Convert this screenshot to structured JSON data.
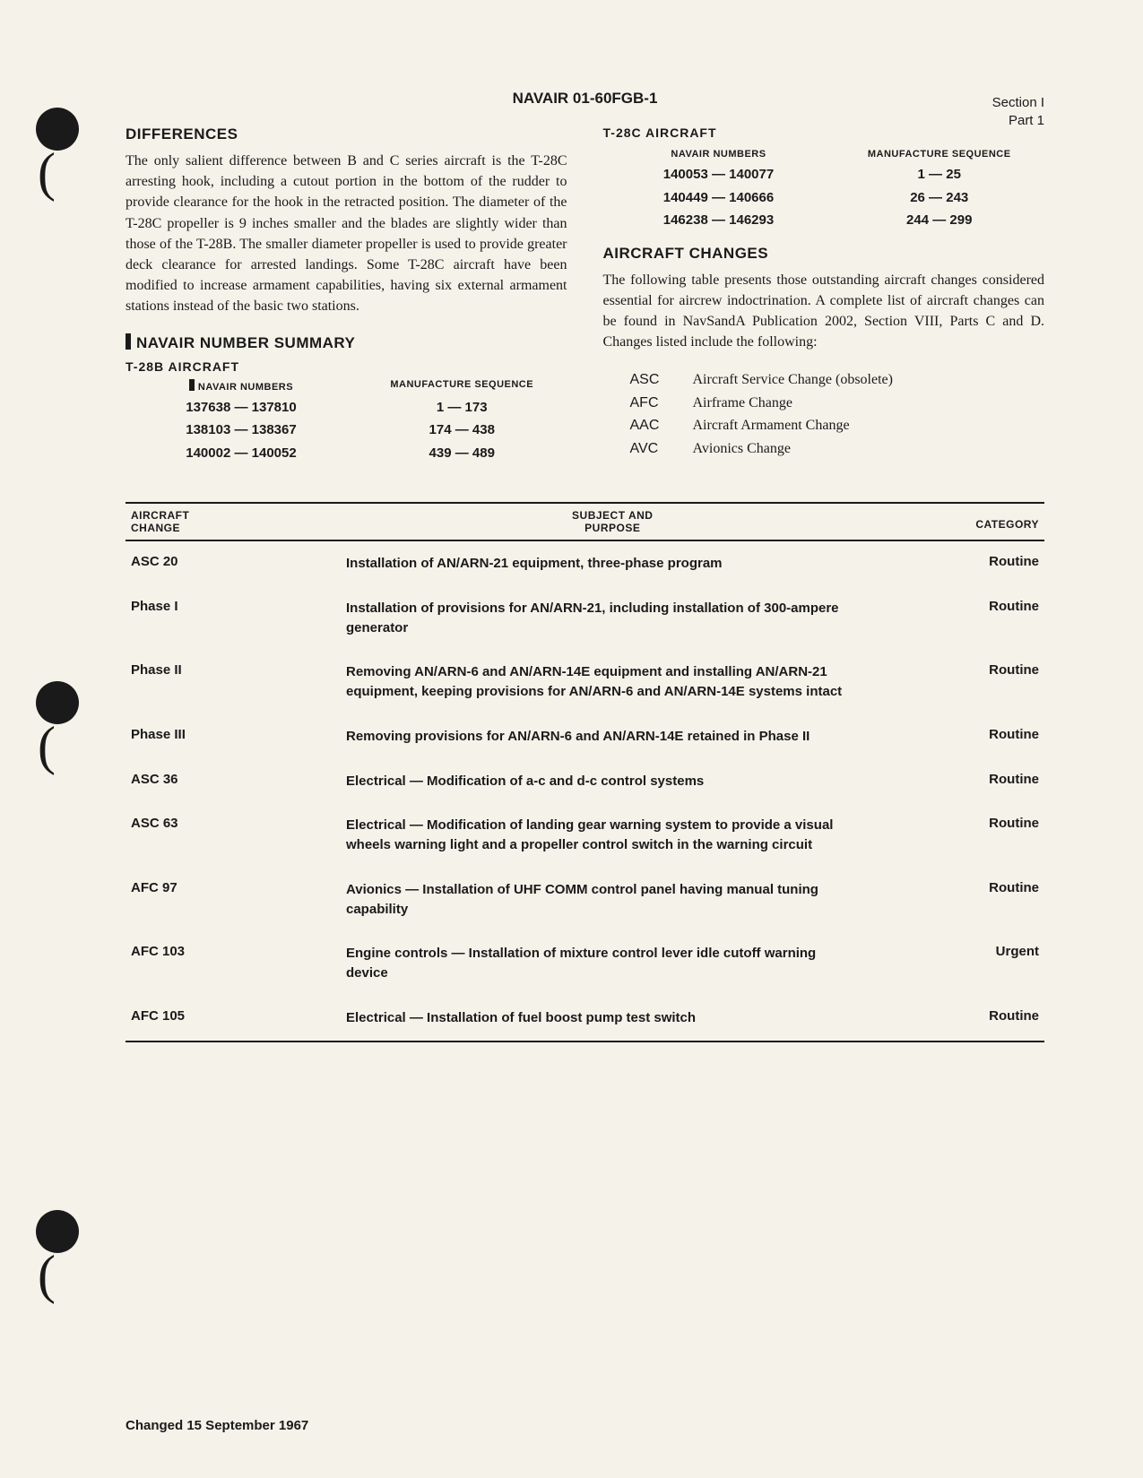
{
  "doc_number": "NAVAIR 01-60FGB-1",
  "section": {
    "line1": "Section I",
    "line2": "Part 1"
  },
  "left": {
    "h_diff": "DIFFERENCES",
    "diff_para": "The only salient difference between B and C series aircraft is the T-28C arresting hook, including a cutout portion in the bottom of the rudder to provide clearance for the hook in the retracted position. The diameter of the T-28C propeller is 9 inches smaller and the blades are slightly wider than those of the T-28B. The smaller diameter propeller is used to provide greater deck clearance for arrested landings. Some T-28C aircraft have been modified to increase armament capabilities, having six external armament stations instead of the basic two stations.",
    "h_nav": "NAVAIR NUMBER SUMMARY",
    "h_t28b": "T-28B AIRCRAFT",
    "hdr_nav": "NAVAIR NUMBERS",
    "hdr_seq": "MANUFACTURE SEQUENCE",
    "t28b_rows": [
      {
        "n": "137638 — 137810",
        "s": "1 — 173"
      },
      {
        "n": "138103 — 138367",
        "s": "174 — 438"
      },
      {
        "n": "140002 — 140052",
        "s": "439 — 489"
      }
    ]
  },
  "right": {
    "h_t28c": "T-28C AIRCRAFT",
    "t28c_rows": [
      {
        "n": "140053 — 140077",
        "s": "1 — 25"
      },
      {
        "n": "140449 — 140666",
        "s": "26 — 243"
      },
      {
        "n": "146238 — 146293",
        "s": "244 — 299"
      }
    ],
    "h_changes": "AIRCRAFT CHANGES",
    "changes_para": "The following table presents those outstanding aircraft changes considered essential for aircrew indoctrination. A complete list of aircraft changes can be found in NavSandA Publication 2002, Section VIII, Parts C and D. Changes listed include the following:",
    "codes": [
      {
        "c": "ASC",
        "d": "Aircraft Service Change (obsolete)"
      },
      {
        "c": "AFC",
        "d": "Airframe Change"
      },
      {
        "c": "AAC",
        "d": "Aircraft Armament Change"
      },
      {
        "c": "AVC",
        "d": "Avionics Change"
      }
    ]
  },
  "table": {
    "h1a": "AIRCRAFT",
    "h1b": "CHANGE",
    "h2a": "SUBJECT AND",
    "h2b": "PURPOSE",
    "h3": "CATEGORY",
    "rows": [
      {
        "c": "ASC 20",
        "p": "Installation of AN/ARN-21 equipment, three-phase program",
        "cat": "Routine"
      },
      {
        "c": "Phase I",
        "p": "Installation of provisions for AN/ARN-21, including installation of 300-ampere generator",
        "cat": "Routine"
      },
      {
        "c": "Phase II",
        "p": "Removing AN/ARN-6 and AN/ARN-14E equipment and installing AN/ARN-21 equipment, keeping provisions for AN/ARN-6 and AN/ARN-14E systems intact",
        "cat": "Routine"
      },
      {
        "c": "Phase III",
        "p": "Removing provisions for AN/ARN-6 and AN/ARN-14E retained in Phase II",
        "cat": "Routine"
      },
      {
        "c": "ASC 36",
        "p": "Electrical — Modification of a-c and d-c control systems",
        "cat": "Routine"
      },
      {
        "c": "ASC 63",
        "p": "Electrical — Modification of landing gear warning system to provide a visual wheels warning light and a propeller control switch in the warning circuit",
        "cat": "Routine"
      },
      {
        "c": "AFC 97",
        "p": "Avionics — Installation of UHF COMM control panel having manual tuning capability",
        "cat": "Routine"
      },
      {
        "c": "AFC 103",
        "p": "Engine controls — Installation of mixture control lever idle cutoff warning device",
        "cat": "Urgent"
      },
      {
        "c": "AFC 105",
        "p": "Electrical — Installation of fuel boost pump test switch",
        "cat": "Routine"
      }
    ]
  },
  "footer": "Changed 15 September 1967"
}
